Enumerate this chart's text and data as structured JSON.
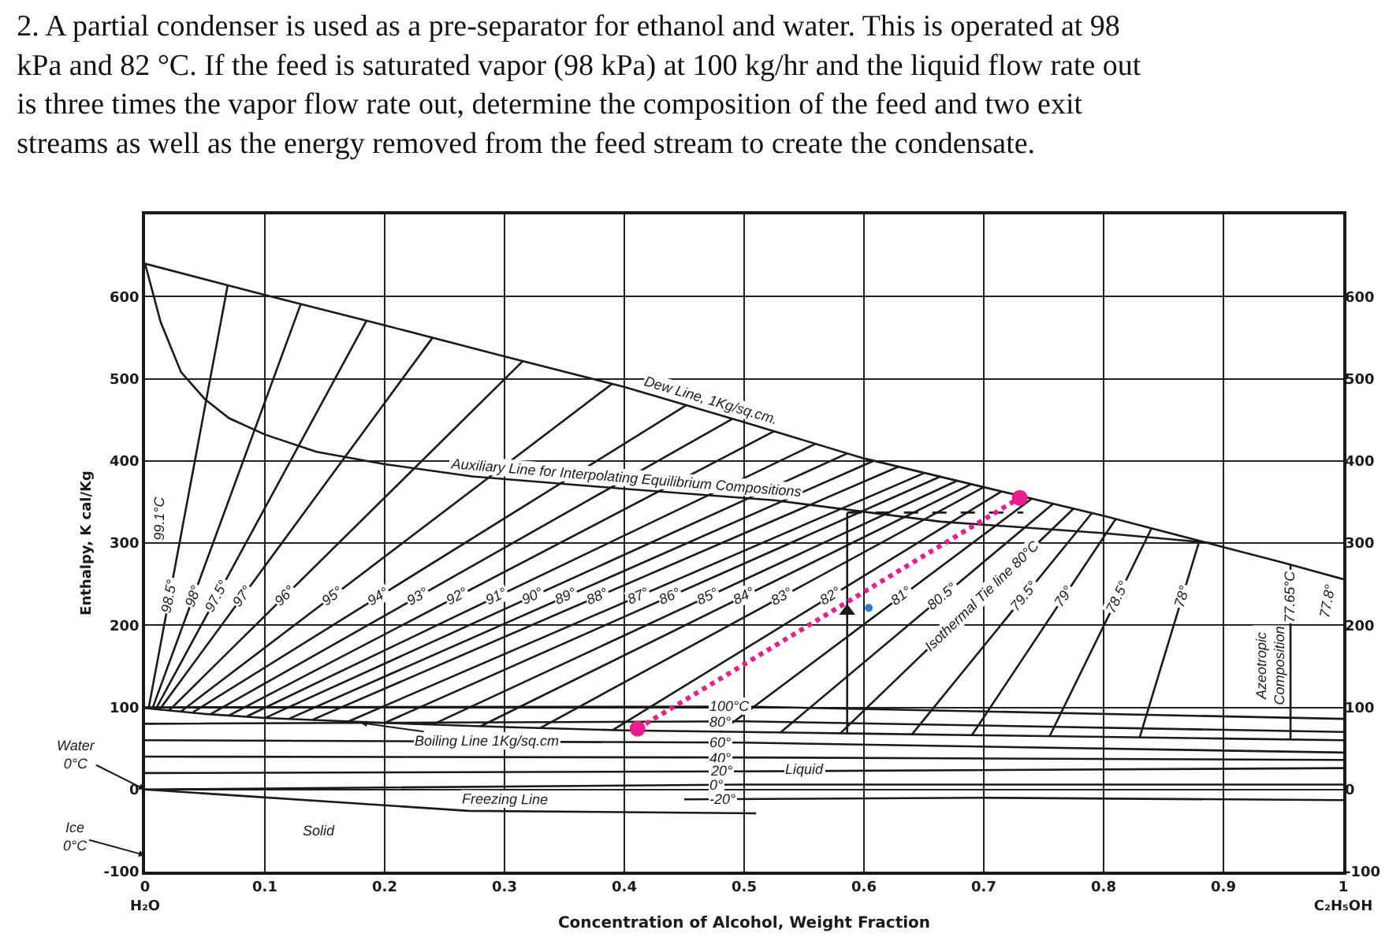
{
  "chart_data": {
    "type": "line",
    "title": "2. A partial condenser is used as a pre-separator for ethanol and water. This is operated at 98 kPa and 82 °C. If the feed is saturated vapor (98 kPa) at 100 kg/hr and the liquid flow rate out is three times the vapor flow rate out, determine the composition of the feed and two exit streams as well as the energy removed from the feed stream to create the condensate.",
    "xlabel": "Concentration of Alcohol, Weight Fraction",
    "ylabel": "Enthalpy, K cal/Kg",
    "xlim": [
      0,
      1
    ],
    "xticks": [
      {
        "value": 0,
        "label": "0\nH₂O"
      },
      0.1,
      0.2,
      0.3,
      0.4,
      0.5,
      0.6,
      0.7,
      0.8,
      0.9,
      {
        "value": 1,
        "label": "1\nC₂H₅OH"
      }
    ],
    "ylim": [
      -100,
      700
    ],
    "yticks": [
      -100,
      0,
      100,
      200,
      300,
      400,
      500,
      600
    ],
    "y2lim": [
      -100,
      700
    ],
    "y2ticks": [
      -100,
      0,
      100,
      200,
      300,
      400,
      500,
      600
    ],
    "grid": true,
    "series": [
      {
        "color": "#1a1a1a",
        "x": [
          0,
          0.1,
          0.2,
          0.3,
          0.4,
          0.5,
          0.6,
          0.7,
          0.8,
          0.9,
          0.95,
          1
        ],
        "values": [
          640,
          602,
          565,
          527,
          490,
          447,
          403,
          368,
          333,
          295,
          276,
          256
        ]
      },
      {
        "color": "#1a1a1a",
        "x": [
          0,
          0.013,
          0.03,
          0.05,
          0.07,
          0.1,
          0.143,
          0.2,
          0.273,
          0.4,
          0.525,
          0.664,
          0.8,
          0.89
        ],
        "values": [
          640,
          569,
          508,
          475,
          452,
          432,
          411,
          396,
          381,
          366,
          352,
          326,
          312,
          300
        ]
      },
      {
        "color": "#1a1a1a",
        "x": [
          0,
          0.05,
          0.1,
          0.2,
          0.3,
          0.4,
          0.5,
          0.6,
          0.7,
          0.8,
          0.9,
          1
        ],
        "values": [
          99,
          92,
          87,
          81,
          76,
          72,
          70,
          68,
          66,
          64,
          62,
          60
        ]
      },
      {
        "color": "#1a1a1a",
        "x": [
          0,
          0.27,
          0.51
        ],
        "values": [
          0,
          -26,
          -29
        ]
      },
      {
        "name": "100°C",
        "color": "#1a1a1a",
        "x": [
          0,
          0.5,
          1
        ],
        "values": [
          100,
          101,
          86
        ]
      },
      {
        "name": "80°",
        "color": "#1a1a1a",
        "x": [
          0,
          0.5,
          1
        ],
        "values": [
          80,
          83,
          70
        ]
      },
      {
        "name": "60°",
        "color": "#1a1a1a",
        "x": [
          0,
          0.5,
          1
        ],
        "values": [
          60,
          57,
          45
        ]
      },
      {
        "name": "40°",
        "color": "#1a1a1a",
        "x": [
          0,
          0.5,
          1
        ],
        "values": [
          40,
          39,
          36
        ]
      },
      {
        "name": "20°",
        "color": "#1a1a1a",
        "x": [
          0,
          0.5,
          1
        ],
        "values": [
          20,
          22,
          26
        ]
      },
      {
        "name": "0°",
        "color": "#1a1a1a",
        "x": [
          0,
          0.5,
          1
        ],
        "values": [
          0,
          6,
          6
        ]
      },
      {
        "name": "-20°",
        "color": "#1a1a1a",
        "x": [
          0.45,
          0.7,
          1
        ],
        "values": [
          -12,
          -10,
          -13
        ]
      },
      {
        "name": "98.5°",
        "color": "#1a1a1a",
        "x": [
          0.003,
          0.069
        ],
        "values": [
          99,
          614
        ]
      },
      {
        "name": "98°",
        "color": "#1a1a1a",
        "x": [
          0.006,
          0.13
        ],
        "values": [
          98,
          591
        ]
      },
      {
        "name": "97.5°",
        "color": "#1a1a1a",
        "x": [
          0.009,
          0.185
        ],
        "values": [
          98,
          571
        ]
      },
      {
        "name": "97°",
        "color": "#1a1a1a",
        "x": [
          0.012,
          0.24
        ],
        "values": [
          97,
          550
        ]
      },
      {
        "name": "96°",
        "color": "#1a1a1a",
        "x": [
          0.02,
          0.315
        ],
        "values": [
          96,
          521
        ]
      },
      {
        "name": "95°",
        "color": "#1a1a1a",
        "x": [
          0.03,
          0.39
        ],
        "values": [
          95,
          494
        ]
      },
      {
        "name": "94°",
        "color": "#1a1a1a",
        "x": [
          0.04,
          0.452
        ],
        "values": [
          94,
          468
        ]
      },
      {
        "name": "93°",
        "color": "#1a1a1a",
        "x": [
          0.055,
          0.49
        ],
        "values": [
          92,
          451
        ]
      },
      {
        "name": "92°",
        "color": "#1a1a1a",
        "x": [
          0.07,
          0.525
        ],
        "values": [
          90,
          436
        ]
      },
      {
        "name": "91°",
        "color": "#1a1a1a",
        "x": [
          0.085,
          0.56
        ],
        "values": [
          89,
          421
        ]
      },
      {
        "name": "90°",
        "color": "#1a1a1a",
        "x": [
          0.1,
          0.586
        ],
        "values": [
          87,
          409
        ]
      },
      {
        "name": "89°",
        "color": "#1a1a1a",
        "x": [
          0.12,
          0.608
        ],
        "values": [
          86,
          400
        ]
      },
      {
        "name": "88°",
        "color": "#1a1a1a",
        "x": [
          0.14,
          0.629
        ],
        "values": [
          85,
          393
        ]
      },
      {
        "name": "87°",
        "color": "#1a1a1a",
        "x": [
          0.17,
          0.65
        ],
        "values": [
          83,
          385
        ]
      },
      {
        "name": "86°",
        "color": "#1a1a1a",
        "x": [
          0.2,
          0.664
        ],
        "values": [
          81,
          381
        ]
      },
      {
        "name": "85°",
        "color": "#1a1a1a",
        "x": [
          0.24,
          0.678
        ],
        "values": [
          79,
          376
        ]
      },
      {
        "name": "84°",
        "color": "#1a1a1a",
        "x": [
          0.28,
          0.69
        ],
        "values": [
          77,
          372
        ]
      },
      {
        "name": "83°",
        "color": "#1a1a1a",
        "x": [
          0.33,
          0.7
        ],
        "values": [
          75,
          368
        ]
      },
      {
        "name": "82°",
        "color": "#1a1a1a",
        "x": [
          0.39,
          0.715
        ],
        "values": [
          72,
          363
        ]
      },
      {
        "name": "81°",
        "color": "#1a1a1a",
        "x": [
          0.48,
          0.74
        ],
        "values": [
          70,
          354
        ]
      },
      {
        "name": "80.5°",
        "color": "#1a1a1a",
        "x": [
          0.53,
          0.758
        ],
        "values": [
          69,
          348
        ]
      },
      {
        "name": "Isothermal Tie line 80°C",
        "color": "#1a1a1a",
        "x": [
          0.58,
          0.775
        ],
        "values": [
          68,
          342
        ]
      },
      {
        "name": "79.5°",
        "color": "#1a1a1a",
        "x": [
          0.64,
          0.79
        ],
        "values": [
          67,
          336
        ]
      },
      {
        "name": "79°",
        "color": "#1a1a1a",
        "x": [
          0.69,
          0.81
        ],
        "values": [
          66,
          329
        ]
      },
      {
        "name": "78.5°",
        "color": "#1a1a1a",
        "x": [
          0.755,
          0.84
        ],
        "values": [
          65,
          318
        ]
      },
      {
        "name": "78°",
        "color": "#1a1a1a",
        "x": [
          0.83,
          0.88
        ],
        "values": [
          63,
          303
        ]
      },
      {
        "name": "77.65°C",
        "color": "#1a1a1a",
        "x": [
          0.956,
          0.956
        ],
        "values": [
          61,
          274
        ]
      },
      {
        "color": "#1a1a1a",
        "x": [
          0.586,
          0.586
        ],
        "values": [
          69,
          337
        ]
      },
      {
        "color": "#1a1a1a",
        "line_style": "dashed",
        "x": [
          0.586,
          0.733
        ],
        "values": [
          337,
          337
        ]
      },
      {
        "type": "scatter",
        "color": "#1a1a1a",
        "marker": "triangle",
        "x": [
          0.586
        ],
        "values": [
          217
        ]
      },
      {
        "type": "scatter",
        "color": "#2b7bd1",
        "marker": "circle",
        "x": [
          0.604
        ],
        "values": [
          221
        ]
      },
      {
        "color": "#ec1c8c",
        "line_style": "dotted",
        "marker": "circle",
        "x": [
          0.411,
          0.73
        ],
        "values": [
          74,
          355
        ]
      }
    ],
    "annotations": [
      {
        "text": "Dew Line, 1Kg/sq.cm.",
        "x": 0.47,
        "y": 460
      },
      {
        "text": "Auxiliary Line for Interpolating Equilibrium Compositions",
        "x": 0.4,
        "y": 366
      },
      {
        "text": "Boiling Line 1Kg/sq.cm",
        "x": 0.18,
        "y": 81
      },
      {
        "text": "Freezing Line",
        "x": 0.3,
        "y": -26
      },
      {
        "text": "Water\n0°C",
        "x": 0,
        "y": 0
      },
      "Ice\n0°C",
      {
        "text": "Liquid",
        "x": 0.55,
        "y": 24
      },
      "Solid",
      {
        "text": "Azeotropic\nComposition",
        "x": 0.956,
        "y": 150
      },
      "99.1°C",
      "77.8°"
    ]
  }
}
